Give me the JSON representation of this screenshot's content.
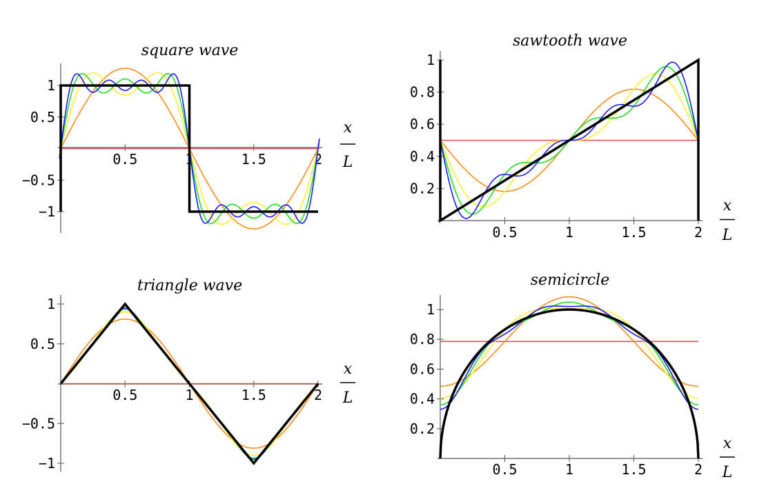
{
  "chart_data": [
    {
      "type": "line",
      "title": "square wave",
      "xlabel_num": "x",
      "xlabel_den": "L",
      "xlim": [
        0,
        2
      ],
      "ylim": [
        -1.33,
        1.33
      ],
      "x_ticks": [
        {
          "v": 0.5,
          "label": "0.5"
        },
        {
          "v": 1,
          "label": "1"
        },
        {
          "v": 1.5,
          "label": "1.5"
        },
        {
          "v": 2,
          "label": "2"
        }
      ],
      "y_ticks": [
        {
          "v": 1,
          "label": "1"
        },
        {
          "v": 0.5,
          "label": "0.5"
        },
        {
          "v": -0.5,
          "label": "−0.5"
        },
        {
          "v": -1,
          "label": "−1"
        }
      ],
      "function": "square",
      "exact": [
        {
          "x": 0,
          "y": -1
        },
        {
          "x": 0,
          "y": 1
        },
        {
          "x": 1,
          "y": 1
        },
        {
          "x": 1,
          "y": -1
        },
        {
          "x": 2,
          "y": -1
        }
      ],
      "series": [
        {
          "terms": 0,
          "color": "#e84a4a"
        },
        {
          "terms": 1,
          "color": "#ff8c1a"
        },
        {
          "terms": 2,
          "color": "#ffee33"
        },
        {
          "terms": 3,
          "color": "#22dd22"
        },
        {
          "terms": 4,
          "color": "#1a1aff"
        },
        {
          "terms": "exact",
          "color": "#000000"
        }
      ]
    },
    {
      "type": "line",
      "title": "sawtooth wave",
      "xlabel_num": "x",
      "xlabel_den": "L",
      "xlim": [
        0,
        2
      ],
      "ylim": [
        0,
        1.03
      ],
      "x_ticks": [
        {
          "v": 0.5,
          "label": "0.5"
        },
        {
          "v": 1,
          "label": "1"
        },
        {
          "v": 1.5,
          "label": "1.5"
        },
        {
          "v": 2,
          "label": "2"
        }
      ],
      "y_ticks": [
        {
          "v": 1,
          "label": "1"
        },
        {
          "v": 0.8,
          "label": "0.8"
        },
        {
          "v": 0.6,
          "label": "0.6"
        },
        {
          "v": 0.4,
          "label": "0.4"
        },
        {
          "v": 0.2,
          "label": "0.2"
        }
      ],
      "function": "sawtooth",
      "exact": [
        {
          "x": 0,
          "y": 1
        },
        {
          "x": 0,
          "y": 0
        },
        {
          "x": 2,
          "y": 1
        },
        {
          "x": 2,
          "y": 0
        }
      ],
      "series": [
        {
          "terms": 0,
          "color": "#e84a4a"
        },
        {
          "terms": 1,
          "color": "#ff8c1a"
        },
        {
          "terms": 2,
          "color": "#ffee33"
        },
        {
          "terms": 3,
          "color": "#22dd22"
        },
        {
          "terms": 4,
          "color": "#1a1aff"
        },
        {
          "terms": "exact",
          "color": "#000000"
        }
      ]
    },
    {
      "type": "line",
      "title": "triangle wave",
      "xlabel_num": "x",
      "xlabel_den": "L",
      "xlim": [
        0,
        2
      ],
      "ylim": [
        -1.05,
        1.05
      ],
      "x_ticks": [
        {
          "v": 0.5,
          "label": "0.5"
        },
        {
          "v": 1,
          "label": "1"
        },
        {
          "v": 1.5,
          "label": "1.5"
        },
        {
          "v": 2,
          "label": "2"
        }
      ],
      "y_ticks": [
        {
          "v": 1,
          "label": "1"
        },
        {
          "v": 0.5,
          "label": "0.5"
        },
        {
          "v": -0.5,
          "label": "−0.5"
        },
        {
          "v": -1,
          "label": "−1"
        }
      ],
      "function": "triangle",
      "exact": [
        {
          "x": 0,
          "y": 0
        },
        {
          "x": 0.5,
          "y": 1
        },
        {
          "x": 1.5,
          "y": -1
        },
        {
          "x": 2,
          "y": 0
        }
      ],
      "series": [
        {
          "terms": 0,
          "color": "#e84a4a"
        },
        {
          "terms": 1,
          "color": "#ff8c1a"
        },
        {
          "terms": 2,
          "color": "#ffee33"
        },
        {
          "terms": 3,
          "color": "#22dd22"
        },
        {
          "terms": 4,
          "color": "#1a1aff"
        },
        {
          "terms": "exact",
          "color": "#000000"
        }
      ]
    },
    {
      "type": "line",
      "title": "semicircle",
      "xlabel_num": "x",
      "xlabel_den": "L",
      "xlim": [
        0,
        2
      ],
      "ylim": [
        0,
        1.1
      ],
      "x_ticks": [
        {
          "v": 0.5,
          "label": "0.5"
        },
        {
          "v": 1,
          "label": "1"
        },
        {
          "v": 1.5,
          "label": "1.5"
        },
        {
          "v": 2,
          "label": "2"
        }
      ],
      "y_ticks": [
        {
          "v": 1,
          "label": "1"
        },
        {
          "v": 0.8,
          "label": "0.8"
        },
        {
          "v": 0.6,
          "label": "0.6"
        },
        {
          "v": 0.4,
          "label": "0.4"
        },
        {
          "v": 0.2,
          "label": "0.2"
        }
      ],
      "function": "semicircle",
      "exact": [],
      "series": [
        {
          "terms": 0,
          "color": "#e84a4a"
        },
        {
          "terms": 1,
          "color": "#ff8c1a"
        },
        {
          "terms": 2,
          "color": "#ffee33"
        },
        {
          "terms": 3,
          "color": "#22dd22"
        },
        {
          "terms": 4,
          "color": "#1a1aff"
        },
        {
          "terms": "exact",
          "color": "#000000"
        }
      ]
    }
  ]
}
